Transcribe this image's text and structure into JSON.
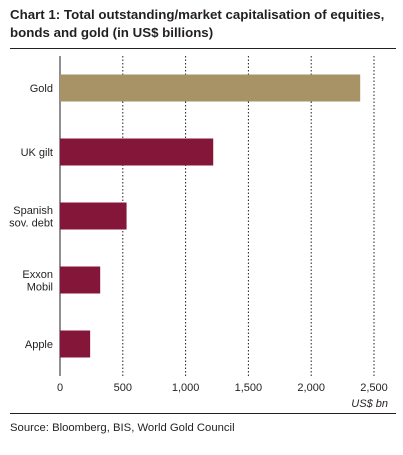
{
  "chart_data": {
    "type": "bar",
    "orientation": "horizontal",
    "title": "Chart 1: Total outstanding/market capitalisation of equities, bonds and gold (in US$ billions)",
    "title_lines": [
      "Chart 1: Total outstanding/market capitalisation of equities,",
      "bonds and gold (in US$ billions)"
    ],
    "categories": [
      [
        "Gold"
      ],
      [
        "UK gilt"
      ],
      [
        "Spanish",
        "sov. debt"
      ],
      [
        "Exxon",
        "Mobil"
      ],
      [
        "Apple"
      ]
    ],
    "values": [
      2390,
      1220,
      530,
      320,
      240
    ],
    "colors": [
      "#a79366",
      "#84163a",
      "#84163a",
      "#84163a",
      "#84163a"
    ],
    "xlim": [
      0,
      2500
    ],
    "xticks": [
      0,
      500,
      1000,
      1500,
      2000,
      2500
    ],
    "xtick_labels": [
      "0",
      "500",
      "1,000",
      "1,500",
      "2,000",
      "2,500"
    ],
    "xlabel": "US$ bn",
    "grid": "vertical dotted",
    "source": "Source: Bloomberg, BIS, World Gold Council"
  }
}
